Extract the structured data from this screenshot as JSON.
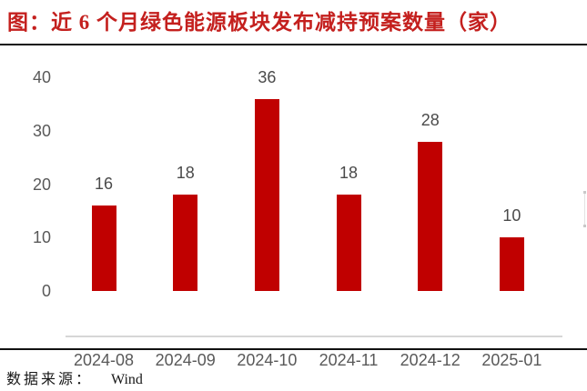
{
  "page": {
    "title": "图：近 6 个月绿色能源板块发布减持预案数量（家）",
    "source_label": "数据来源：",
    "source_value": "Wind"
  },
  "colors": {
    "title_red": "#c4201e",
    "bar_red": "#c00000",
    "axis_text_gray": "#595959",
    "value_text_gray": "#4a4a4a",
    "axis_line_gray": "#d6d6d6",
    "rule_black": "#111111"
  },
  "chart_data": {
    "type": "bar",
    "title": "近6个月绿色能源板块发布减持预案数量（家）",
    "categories": [
      "2024-08",
      "2024-09",
      "2024-10",
      "2024-11",
      "2024-12",
      "2025-01"
    ],
    "values": [
      16,
      18,
      36,
      18,
      28,
      10
    ],
    "xlabel": "",
    "ylabel": "",
    "ylim": [
      0,
      40
    ],
    "yticks": [
      0,
      10,
      20,
      30,
      40
    ],
    "grid": false,
    "legend": "none",
    "data_labels": true,
    "bar_color": "#c00000"
  }
}
